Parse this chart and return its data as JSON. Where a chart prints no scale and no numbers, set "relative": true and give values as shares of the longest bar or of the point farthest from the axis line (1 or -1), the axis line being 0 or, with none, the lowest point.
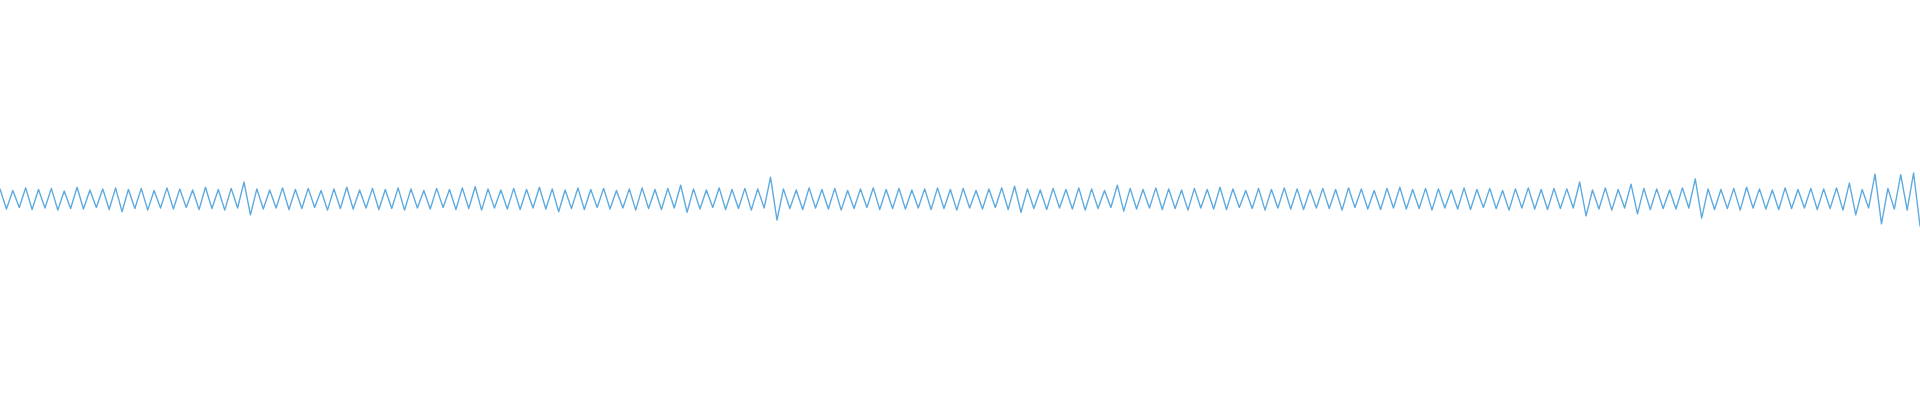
{
  "chart_data": {
    "type": "line",
    "relative": true,
    "categories": [
      null,
      null,
      null,
      null,
      null,
      null,
      null,
      null,
      null,
      null,
      null,
      null,
      null,
      null,
      null,
      null,
      null,
      null,
      null,
      null,
      null,
      null,
      null,
      null,
      null,
      null,
      null,
      null,
      null,
      null,
      null,
      null,
      null,
      null,
      null,
      null,
      null,
      null,
      null,
      null,
      null,
      null,
      null,
      null,
      null,
      null,
      null,
      null,
      null,
      null,
      null,
      null,
      null,
      null,
      null,
      null,
      null,
      null,
      null,
      null,
      null,
      null,
      null,
      null,
      null,
      null,
      null,
      null,
      null,
      null,
      null,
      null,
      null,
      null,
      null,
      null,
      null,
      null,
      null,
      null,
      null,
      null,
      null,
      null,
      null,
      null,
      null,
      null,
      null,
      null,
      null,
      null,
      null,
      null,
      null,
      null,
      null,
      null,
      null,
      null,
      null,
      null,
      null,
      null,
      null,
      null,
      null,
      null,
      null,
      null,
      null,
      null,
      null,
      null,
      null,
      null,
      null,
      null,
      null,
      null,
      null,
      null,
      null,
      null,
      null,
      null,
      null,
      null,
      null,
      null,
      null,
      null,
      null,
      null,
      null,
      null,
      null,
      null,
      null,
      null,
      null,
      null,
      null,
      null,
      null,
      null,
      null,
      null,
      null,
      null,
      null,
      null,
      null,
      null,
      null,
      null,
      null,
      null,
      null,
      null,
      null,
      null,
      null,
      null,
      null,
      null,
      null,
      null,
      null,
      null,
      null,
      null,
      null,
      null,
      null,
      null,
      null,
      null,
      null,
      null,
      null,
      null,
      null,
      null,
      null,
      null,
      null,
      null,
      null,
      null,
      null,
      null,
      null,
      null,
      null,
      null,
      null,
      null,
      null,
      null,
      null,
      null,
      null,
      null,
      null,
      null,
      null,
      null,
      null,
      null,
      null,
      null,
      null,
      null,
      null,
      null,
      null,
      null,
      null,
      null,
      null,
      null,
      null,
      null,
      null,
      null,
      null,
      null,
      null,
      null,
      null,
      null,
      null,
      null,
      null,
      null,
      null,
      null,
      null,
      null,
      null,
      null,
      null,
      null,
      null,
      null,
      null,
      null,
      null,
      null,
      null,
      null,
      null,
      null,
      null,
      null,
      null,
      null,
      null,
      null,
      null,
      null,
      null,
      null,
      null,
      null,
      null,
      null,
      null,
      null,
      null,
      null,
      null,
      null,
      null,
      null,
      null,
      null,
      null,
      null,
      null,
      null,
      null,
      null,
      null,
      null,
      null,
      null,
      null,
      null,
      null,
      null,
      null,
      null,
      null,
      null,
      null,
      null,
      null,
      null
    ],
    "series": [
      {
        "color": "#5daae0",
        "values": [
          0.7,
          0.32,
          0.67,
          0.35,
          0.72,
          0.31,
          0.69,
          0.34,
          0.71,
          0.3,
          0.66,
          0.33,
          0.73,
          0.32,
          0.68,
          0.35,
          0.7,
          0.31,
          0.72,
          0.27,
          0.69,
          0.33,
          0.71,
          0.3,
          0.67,
          0.34,
          0.72,
          0.32,
          0.7,
          0.35,
          0.68,
          0.31,
          0.73,
          0.33,
          0.69,
          0.3,
          0.71,
          0.34,
          0.83,
          0.21,
          0.7,
          0.32,
          0.68,
          0.34,
          0.72,
          0.31,
          0.69,
          0.33,
          0.71,
          0.35,
          0.67,
          0.3,
          0.7,
          0.33,
          0.73,
          0.32,
          0.68,
          0.34,
          0.71,
          0.31,
          0.69,
          0.33,
          0.72,
          0.3,
          0.7,
          0.34,
          0.67,
          0.32,
          0.71,
          0.35,
          0.69,
          0.31,
          0.72,
          0.33,
          0.74,
          0.3,
          0.7,
          0.34,
          0.68,
          0.32,
          0.71,
          0.31,
          0.69,
          0.34,
          0.73,
          0.32,
          0.7,
          0.27,
          0.68,
          0.33,
          0.72,
          0.31,
          0.69,
          0.35,
          0.71,
          0.32,
          0.67,
          0.34,
          0.7,
          0.3,
          0.72,
          0.33,
          0.69,
          0.31,
          0.71,
          0.34,
          0.77,
          0.26,
          0.7,
          0.32,
          0.68,
          0.35,
          0.72,
          0.31,
          0.69,
          0.33,
          0.71,
          0.3,
          0.7,
          0.34,
          0.92,
          0.11,
          0.7,
          0.33,
          0.68,
          0.31,
          0.72,
          0.34,
          0.69,
          0.32,
          0.71,
          0.3,
          0.67,
          0.33,
          0.7,
          0.35,
          0.72,
          0.31,
          0.69,
          0.33,
          0.71,
          0.32,
          0.68,
          0.34,
          0.7,
          0.31,
          0.72,
          0.33,
          0.69,
          0.3,
          0.71,
          0.34,
          0.67,
          0.32,
          0.7,
          0.35,
          0.72,
          0.31,
          0.75,
          0.26,
          0.7,
          0.33,
          0.68,
          0.31,
          0.71,
          0.34,
          0.69,
          0.32,
          0.72,
          0.3,
          0.7,
          0.33,
          0.67,
          0.35,
          0.77,
          0.28,
          0.71,
          0.32,
          0.69,
          0.34,
          0.72,
          0.31,
          0.7,
          0.33,
          0.68,
          0.3,
          0.71,
          0.34,
          0.69,
          0.32,
          0.73,
          0.31,
          0.7,
          0.35,
          0.67,
          0.33,
          0.71,
          0.3,
          0.69,
          0.34,
          0.72,
          0.32,
          0.7,
          0.31,
          0.68,
          0.34,
          0.71,
          0.33,
          0.69,
          0.3,
          0.72,
          0.35,
          0.7,
          0.32,
          0.67,
          0.31,
          0.71,
          0.34,
          0.73,
          0.32,
          0.69,
          0.33,
          0.71,
          0.3,
          0.7,
          0.34,
          0.68,
          0.32,
          0.72,
          0.31,
          0.69,
          0.35,
          0.71,
          0.33,
          0.67,
          0.3,
          0.7,
          0.34,
          0.72,
          0.32,
          0.69,
          0.31,
          0.71,
          0.33,
          0.7,
          0.34,
          0.83,
          0.19,
          0.68,
          0.32,
          0.72,
          0.3,
          0.69,
          0.34,
          0.79,
          0.23,
          0.71,
          0.31,
          0.7,
          0.33,
          0.68,
          0.32,
          0.72,
          0.34,
          0.89,
          0.15,
          0.7,
          0.31,
          0.69,
          0.33,
          0.71,
          0.3,
          0.73,
          0.34,
          0.7,
          0.32,
          0.68,
          0.31,
          0.72,
          0.33,
          0.69,
          0.34,
          0.71,
          0.31,
          0.7,
          0.33,
          0.72,
          0.3,
          0.81,
          0.21,
          0.69,
          0.34,
          0.98,
          0.04,
          0.71,
          0.32,
          0.97,
          0.3,
          1.0,
          0.0
        ]
      }
    ]
  }
}
